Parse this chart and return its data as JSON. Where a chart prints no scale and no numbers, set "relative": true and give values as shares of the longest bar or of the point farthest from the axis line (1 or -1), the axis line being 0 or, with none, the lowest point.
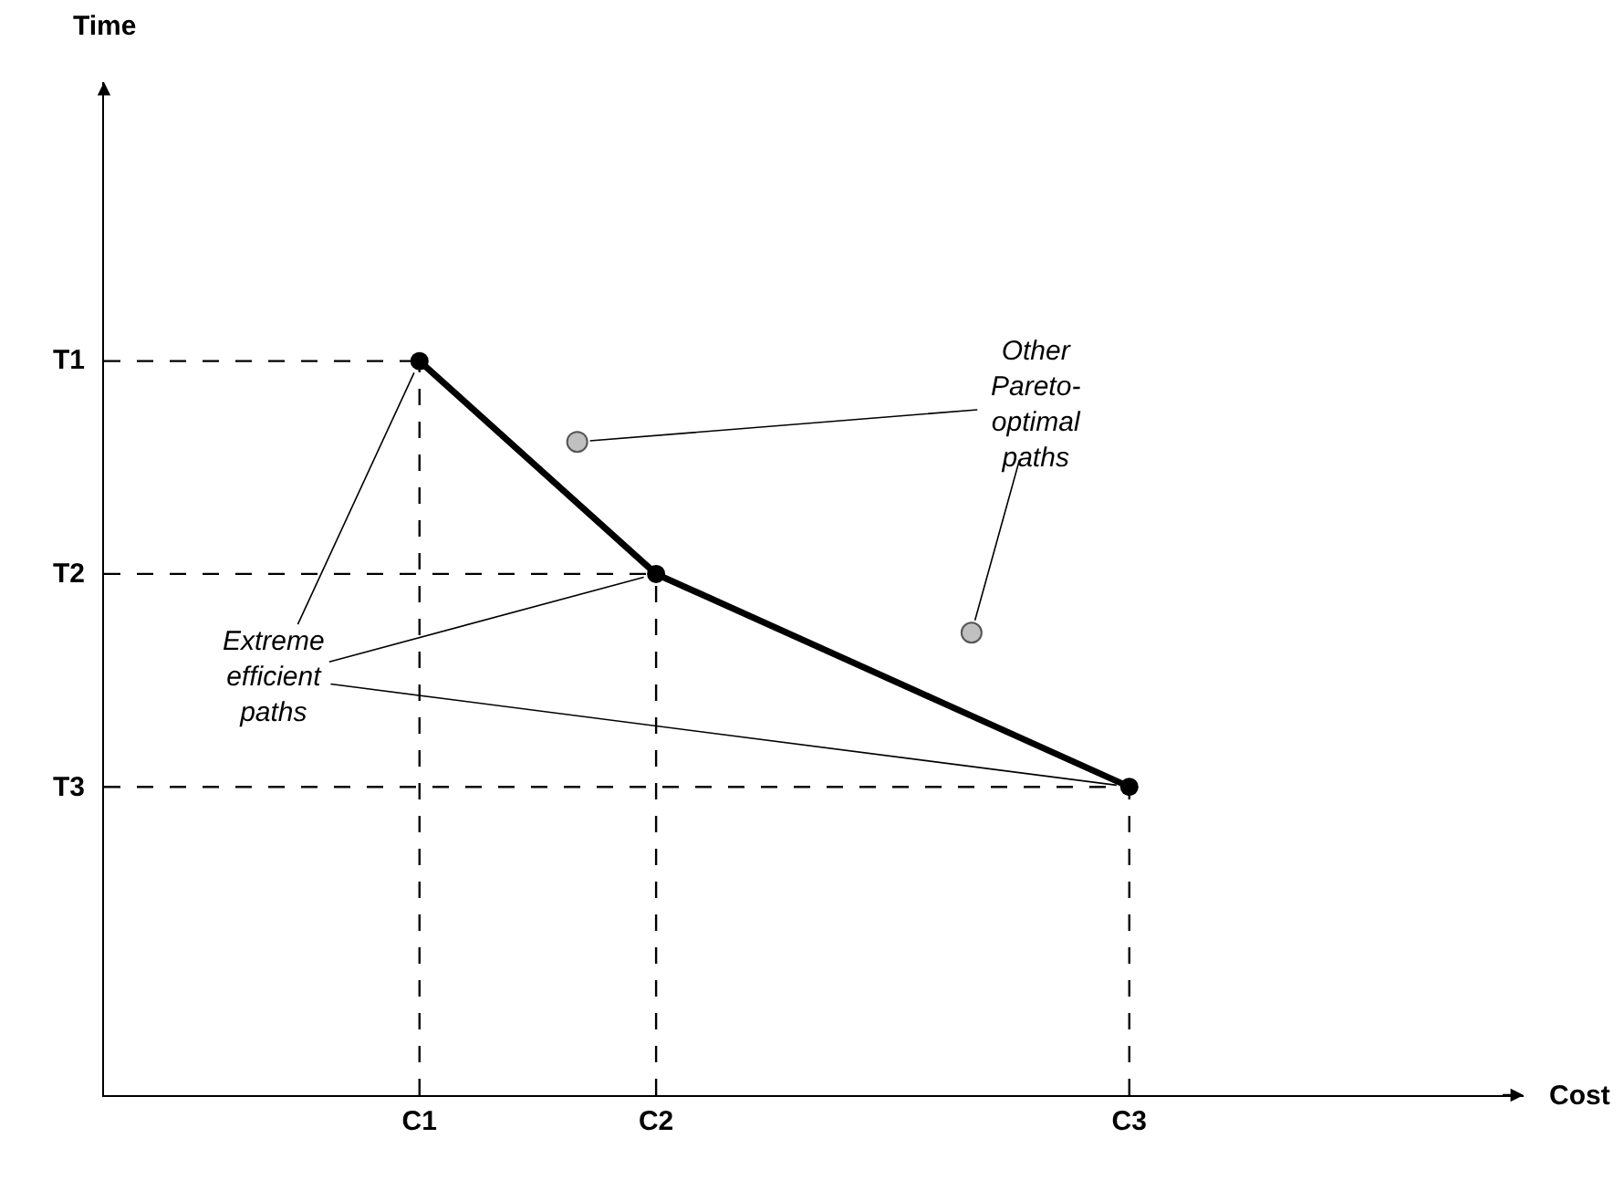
{
  "chart_data": {
    "type": "line",
    "xlabel": "Cost",
    "relative": true,
    "categories": [
      null,
      null,
      null,
      null,
      "C1",
      null,
      null,
      "C2",
      null,
      null,
      null,
      null,
      null,
      "C3",
      null,
      null,
      null,
      null
    ],
    "series": [
      {
        "color": "#000000",
        "values": [
          null,
          null,
          null,
          null,
          1.0,
          null,
          null,
          0.71,
          null,
          null,
          null,
          null,
          null,
          0.42,
          null,
          null,
          null,
          null
        ],
        "marker": "circle",
        "line_style": "solid"
      },
      {
        "type": "scatter",
        "color": "#c0c0c0",
        "values": [
          null,
          null,
          null,
          null,
          null,
          null,
          0.89,
          null,
          null,
          null,
          null,
          0.63,
          null,
          null,
          null,
          null,
          null,
          null
        ],
        "marker": "circle"
      }
    ],
    "ref_lines": [
      {
        "axis": "y",
        "value": 1.0,
        "label": "T1",
        "color": "#000000",
        "line_style": "dashed"
      },
      {
        "axis": "y",
        "value": 0.71,
        "label": "T2",
        "color": "#000000",
        "line_style": "dashed"
      },
      {
        "axis": "y",
        "value": 0.42,
        "label": "T3",
        "color": "#000000",
        "line_style": "dashed"
      },
      {
        "axis": "x",
        "value": "C1",
        "color": "#000000",
        "line_style": "dashed"
      },
      {
        "axis": "x",
        "value": "C2",
        "color": "#000000",
        "line_style": "dashed"
      },
      {
        "axis": "x",
        "value": "C3",
        "color": "#000000",
        "line_style": "dashed"
      }
    ],
    "annotations": [
      "Time",
      "Extreme\nefficient\npaths",
      "Other\nPareto-\noptimal\npaths"
    ]
  }
}
